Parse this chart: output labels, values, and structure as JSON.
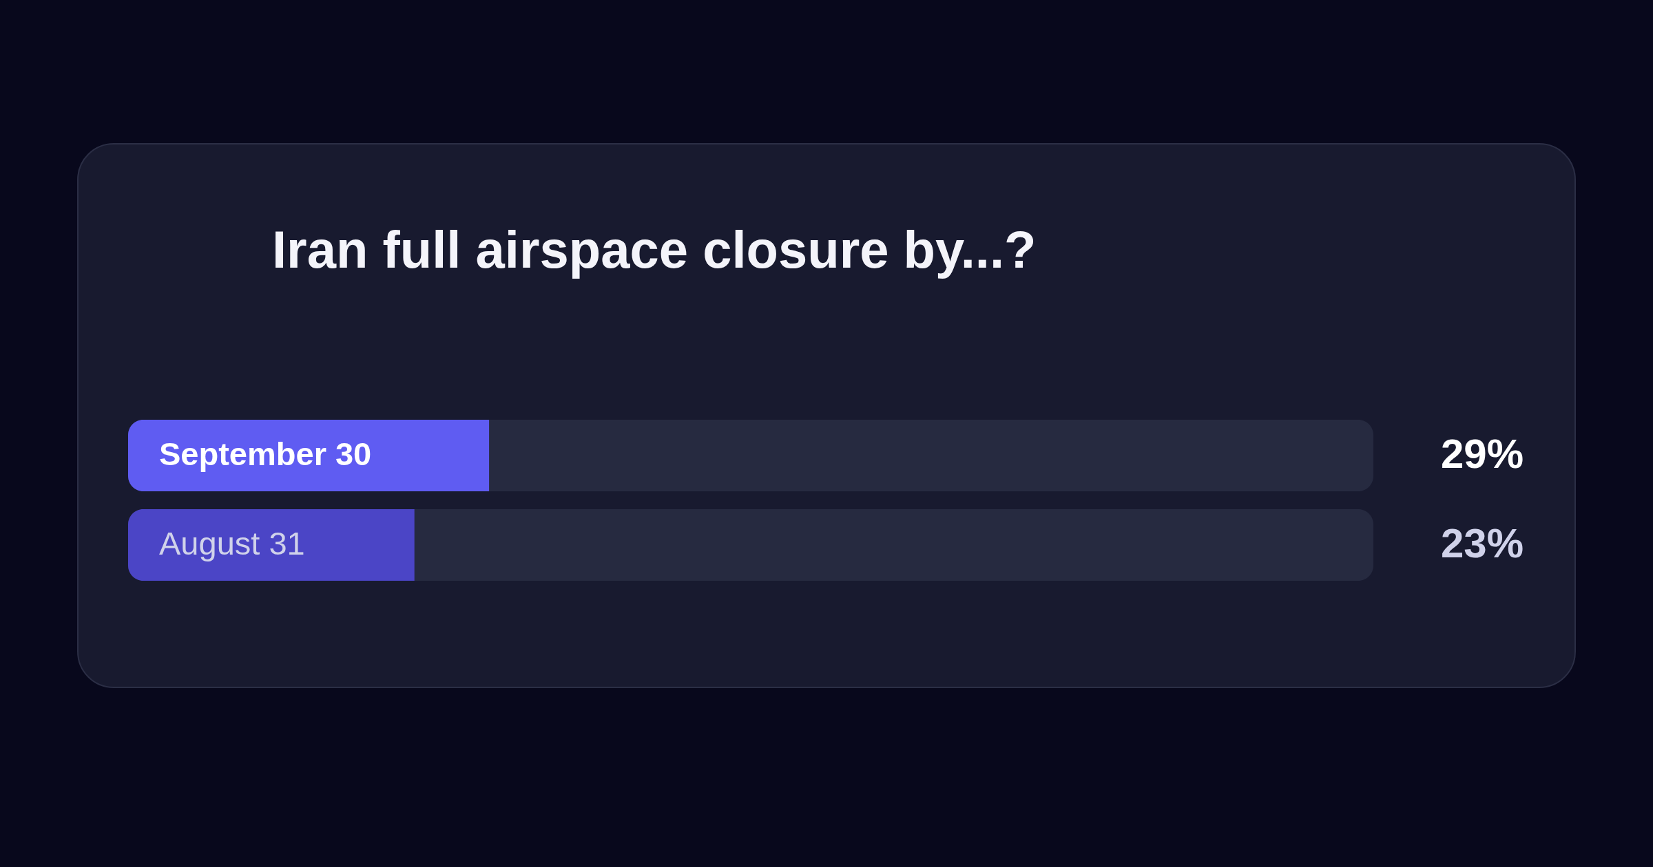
{
  "chart_data": {
    "type": "bar",
    "orientation": "horizontal",
    "title": "Iran full airspace closure by...?",
    "categories": [
      "September 30",
      "August 31"
    ],
    "values": [
      29,
      23
    ],
    "colors": [
      "#5f5cf2",
      "#4b45c6"
    ],
    "value_labels": [
      "29%",
      "23%"
    ],
    "xlim": [
      0,
      100
    ],
    "tick_labels": false
  }
}
